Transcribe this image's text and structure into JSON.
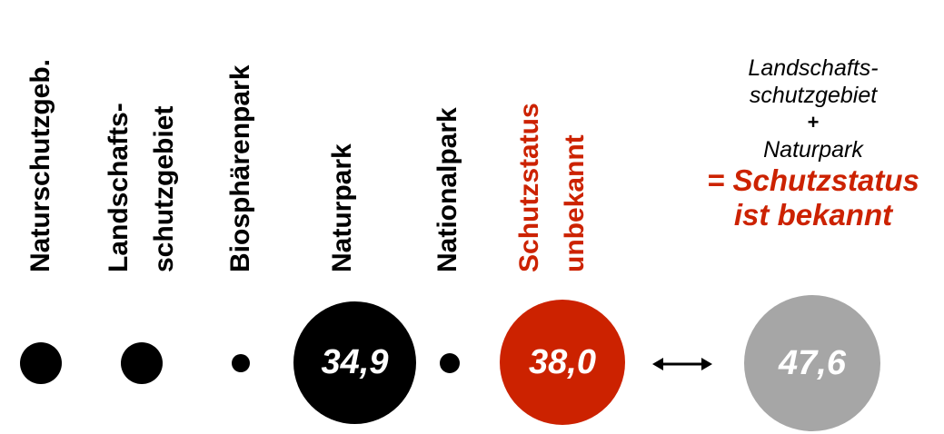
{
  "colors": {
    "black": "#000000",
    "red": "#cc2200",
    "gray": "#a6a6a6",
    "white": "#ffffff"
  },
  "categories": [
    {
      "lines": [
        "Naturschutzgeb."
      ],
      "color": "#000000",
      "value": null
    },
    {
      "lines": [
        "Landschafts-",
        "schutzgebiet"
      ],
      "color": "#000000",
      "value": null
    },
    {
      "lines": [
        "Biosphärenpark"
      ],
      "color": "#000000",
      "value": null
    },
    {
      "lines": [
        "Naturpark"
      ],
      "color": "#000000",
      "value": "34,9"
    },
    {
      "lines": [
        "Nationalpark"
      ],
      "color": "#000000",
      "value": null
    },
    {
      "lines": [
        "Schutzstatus",
        "unbekannt"
      ],
      "color": "#cc2200",
      "value": "38,0"
    }
  ],
  "annotation": {
    "line1": "Landschafts-",
    "line2": "schutzgebiet",
    "plus": "+",
    "line3": "Naturpark",
    "result1": "= Schutzstatus",
    "result2": "ist bekannt",
    "value": "47,6"
  },
  "arrow_icon": "double-headed-arrow"
}
